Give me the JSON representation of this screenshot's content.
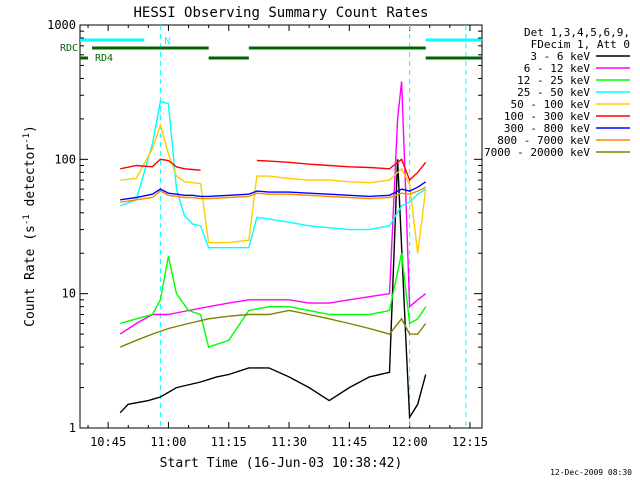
{
  "chart_data": {
    "type": "line",
    "title": "HESSI Observing Summary Count Rates",
    "xlabel": "Start Time (16-Jun-03 10:38:42)",
    "ylabel": "Count Rate (s",
    "ylabel_sup": "-1",
    "ylabel_mid": " detector",
    "ylabel_sup2": "-1",
    "ylabel_end": ")",
    "y_scale": "log",
    "ylim": [
      1,
      1000
    ],
    "xlim": [
      "10:38",
      "12:18"
    ],
    "x_ticks": [
      {
        "t": "10:45",
        "label": "10:45"
      },
      {
        "t": "11:00",
        "label": "11:00"
      },
      {
        "t": "11:15",
        "label": "11:15"
      },
      {
        "t": "11:30",
        "label": "11:30"
      },
      {
        "t": "11:45",
        "label": "11:45"
      },
      {
        "t": "12:00",
        "label": "12:00"
      },
      {
        "t": "12:15",
        "label": "12:15"
      }
    ],
    "y_ticks": [
      {
        "v": 1,
        "label": "1"
      },
      {
        "v": 10,
        "label": "10"
      },
      {
        "v": 100,
        "label": "100"
      },
      {
        "v": 1000,
        "label": "1000"
      }
    ],
    "legend_header": [
      "Det 1,3,4,5,6,9,",
      "FDecim 1, Att 0"
    ],
    "legend_position": "right",
    "series": [
      {
        "name": "3 - 6 keV",
        "color": "#000000",
        "x": [
          "10:43",
          "10:48",
          "10:50",
          "10:55",
          "10:58",
          "11:02",
          "11:08",
          "11:12",
          "11:15",
          "11:20",
          "11:25",
          "11:30",
          "11:35",
          "11:40",
          "11:45",
          "11:50",
          "11:55",
          "11:57",
          "11:59",
          "12:00",
          "12:02",
          "12:04"
        ],
        "values": [
          null,
          1.3,
          1.5,
          1.6,
          1.7,
          2.0,
          2.2,
          2.4,
          2.5,
          2.8,
          2.8,
          2.4,
          2.0,
          1.6,
          2.0,
          2.4,
          2.6,
          100,
          5,
          1.2,
          1.5,
          2.5
        ]
      },
      {
        "name": "6 - 12 keV",
        "color": "#ff00ff",
        "x": [
          "10:48",
          "10:52",
          "10:56",
          "11:00",
          "11:05",
          "11:10",
          "11:15",
          "11:20",
          "11:25",
          "11:30",
          "11:35",
          "11:40",
          "11:45",
          "11:50",
          "11:55",
          "11:57",
          "11:58",
          "11:59",
          "12:00",
          "12:02",
          "12:04"
        ],
        "values": [
          5,
          6,
          7,
          7,
          7.5,
          8,
          8.5,
          9,
          9,
          9,
          8.5,
          8.5,
          9,
          9.5,
          10,
          200,
          380,
          60,
          8,
          9,
          10
        ]
      },
      {
        "name": "12 - 25 keV",
        "color": "#00ff00",
        "x": [
          "10:48",
          "10:52",
          "10:56",
          "10:58",
          "11:00",
          "11:02",
          "11:05",
          "11:08",
          "11:10",
          "11:15",
          "11:20",
          "11:25",
          "11:30",
          "11:35",
          "11:40",
          "11:45",
          "11:50",
          "11:55",
          "11:58",
          "12:00",
          "12:02",
          "12:04"
        ],
        "values": [
          6,
          6.5,
          7,
          9,
          19,
          10,
          7.5,
          7,
          4,
          4.5,
          7.5,
          8,
          8,
          7.5,
          7,
          7,
          7,
          7.5,
          20,
          6,
          6.5,
          8
        ]
      },
      {
        "name": "25 - 50 keV",
        "color": "#00ffff",
        "x": [
          "10:48",
          "10:52",
          "10:56",
          "10:58",
          "11:00",
          "11:02",
          "11:04",
          "11:06",
          "11:08",
          "11:10",
          "11:15",
          "11:20",
          "11:22",
          "11:25",
          "11:30",
          "11:35",
          "11:40",
          "11:45",
          "11:50",
          "11:55",
          "11:58",
          "12:00",
          "12:02",
          "12:04"
        ],
        "values": [
          45,
          50,
          130,
          270,
          260,
          60,
          38,
          33,
          32,
          22,
          22,
          22,
          37,
          36,
          34,
          32,
          31,
          30,
          30,
          32,
          45,
          48,
          55,
          60
        ]
      },
      {
        "name": "50 - 100 keV",
        "color": "#ffcc00",
        "x": [
          "10:48",
          "10:52",
          "10:56",
          "10:58",
          "11:00",
          "11:02",
          "11:04",
          "11:06",
          "11:08",
          "11:10",
          "11:15",
          "11:20",
          "11:22",
          "11:25",
          "11:30",
          "11:35",
          "11:40",
          "11:45",
          "11:50",
          "11:55",
          "11:58",
          "12:00",
          "12:02",
          "12:04"
        ],
        "values": [
          70,
          72,
          120,
          180,
          110,
          75,
          68,
          67,
          66,
          24,
          24,
          25,
          75,
          75,
          72,
          70,
          70,
          68,
          67,
          70,
          85,
          65,
          20,
          60
        ]
      },
      {
        "name": "100 - 300 keV",
        "color": "#ff0000",
        "x": [
          "10:48",
          "10:52",
          "10:56",
          "10:58",
          "11:00",
          "11:02",
          "11:04",
          "11:06",
          "11:08",
          "11:10",
          "11:20",
          "11:22",
          "11:25",
          "11:30",
          "11:35",
          "11:40",
          "11:45",
          "11:50",
          "11:55",
          "11:58",
          "12:00",
          "12:02",
          "12:04"
        ],
        "values": [
          85,
          90,
          88,
          100,
          98,
          88,
          85,
          84,
          83,
          null,
          null,
          98,
          97,
          95,
          92,
          90,
          88,
          87,
          85,
          100,
          70,
          80,
          95
        ]
      },
      {
        "name": "300 - 800 keV",
        "color": "#0000ff",
        "x": [
          "10:48",
          "10:52",
          "10:56",
          "10:58",
          "11:00",
          "11:02",
          "11:04",
          "11:06",
          "11:08",
          "11:10",
          "11:15",
          "11:20",
          "11:22",
          "11:25",
          "11:30",
          "11:35",
          "11:40",
          "11:45",
          "11:50",
          "11:55",
          "11:58",
          "12:00",
          "12:02",
          "12:04"
        ],
        "values": [
          50,
          52,
          55,
          60,
          56,
          55,
          54,
          54,
          53,
          53,
          54,
          55,
          58,
          57,
          57,
          56,
          55,
          54,
          53,
          54,
          60,
          58,
          62,
          68
        ]
      },
      {
        "name": "800 - 7000 keV",
        "color": "#ff8800",
        "x": [
          "10:48",
          "10:52",
          "10:56",
          "10:58",
          "11:00",
          "11:02",
          "11:04",
          "11:06",
          "11:08",
          "11:10",
          "11:15",
          "11:20",
          "11:22",
          "11:25",
          "11:30",
          "11:35",
          "11:40",
          "11:45",
          "11:50",
          "11:55",
          "11:58",
          "12:00",
          "12:02",
          "12:04"
        ],
        "values": [
          48,
          50,
          52,
          58,
          54,
          53,
          52,
          52,
          51,
          51,
          52,
          53,
          56,
          55,
          55,
          54,
          53,
          52,
          51,
          52,
          56,
          55,
          58,
          62
        ]
      },
      {
        "name": "7000 - 20000 keV",
        "color": "#808000",
        "x": [
          "10:48",
          "10:52",
          "10:56",
          "11:00",
          "11:05",
          "11:10",
          "11:15",
          "11:20",
          "11:25",
          "11:30",
          "11:35",
          "11:40",
          "11:45",
          "11:50",
          "11:55",
          "11:58",
          "12:00",
          "12:02",
          "12:04"
        ],
        "values": [
          4,
          4.5,
          5,
          5.5,
          6,
          6.5,
          6.8,
          7,
          7,
          7.5,
          7,
          6.5,
          6,
          5.5,
          5,
          6.5,
          5,
          5,
          6
        ]
      }
    ],
    "attenuator_bars": {
      "rdc_label": "RDC",
      "rd4_label": "RD4",
      "n_label": "N",
      "rdc_color": "#006400",
      "n_color": "#00ffff"
    },
    "dashed_markers": [
      "10:58",
      "12:00",
      "12:14"
    ],
    "timestamp": "12-Dec-2009 08:30"
  }
}
